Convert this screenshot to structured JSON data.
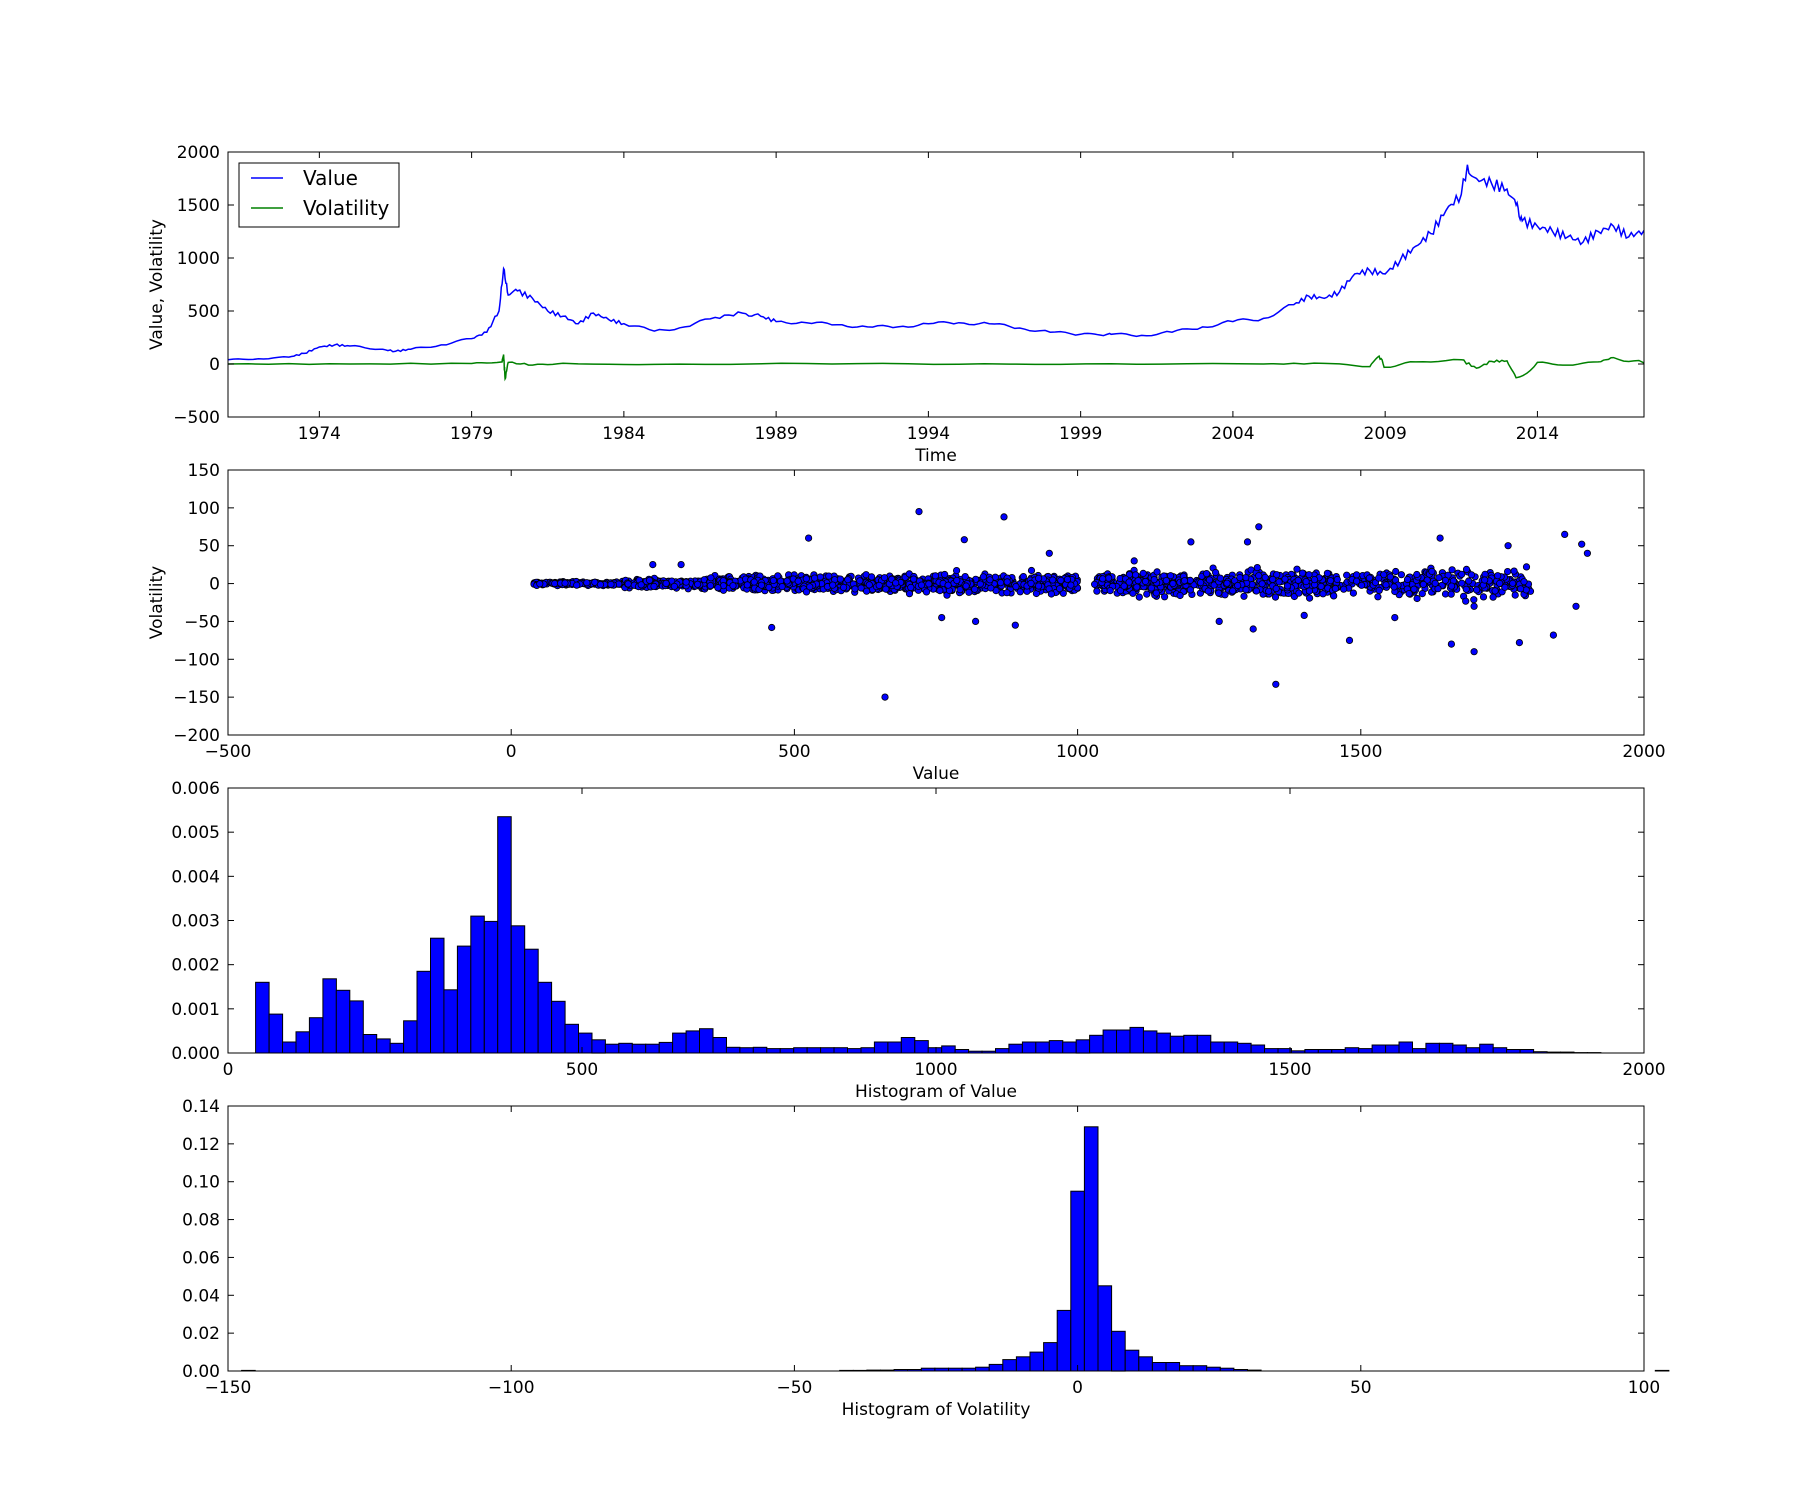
{
  "colors": {
    "value": "#0000ff",
    "volatility": "#008000",
    "bar": "#0000ff",
    "scatter": "#0000ff",
    "edge": "#000000"
  },
  "chart_data": [
    {
      "type": "line",
      "xlabel": "Time",
      "ylabel": "Value, Volatility",
      "xlim": [
        1971.0,
        2017.5
      ],
      "ylim": [
        -500,
        2000
      ],
      "xticks": [
        1974,
        1979,
        1984,
        1989,
        1994,
        1999,
        2004,
        2009,
        2014
      ],
      "yticks": [
        2000,
        1500,
        1000,
        500,
        0,
        -500
      ],
      "ytick_labels": [
        "2000",
        "1500",
        "1000",
        "500",
        "0",
        "−500"
      ],
      "legend": {
        "position": "top-left",
        "entries": [
          "Value",
          "Volatility"
        ]
      },
      "series": [
        {
          "name": "Value",
          "x": [
            1971.0,
            1972.0,
            1973.0,
            1973.5,
            1974.0,
            1974.5,
            1975.0,
            1976.0,
            1976.5,
            1977.0,
            1978.0,
            1979.0,
            1979.5,
            1979.9,
            1980.05,
            1980.2,
            1980.5,
            1981.0,
            1981.5,
            1982.0,
            1982.5,
            1983.0,
            1983.5,
            1984.0,
            1985.0,
            1986.0,
            1987.0,
            1987.9,
            1988.5,
            1989.0,
            1990.0,
            1991.0,
            1992.0,
            1993.0,
            1994.0,
            1995.0,
            1996.0,
            1997.0,
            1998.0,
            1999.0,
            1999.7,
            2000.0,
            2001.0,
            2002.0,
            2003.0,
            2004.0,
            2005.0,
            2006.0,
            2006.5,
            2007.0,
            2007.5,
            2008.0,
            2008.5,
            2009.0,
            2009.5,
            2010.0,
            2010.5,
            2011.0,
            2011.5,
            2011.7,
            2012.0,
            2012.5,
            2013.0,
            2013.3,
            2013.5,
            2014.0,
            2014.5,
            2015.0,
            2015.5,
            2016.0,
            2016.5,
            2017.0,
            2017.5
          ],
          "y": [
            40,
            50,
            65,
            100,
            160,
            180,
            170,
            140,
            120,
            140,
            180,
            240,
            300,
            500,
            900,
            650,
            690,
            620,
            500,
            450,
            380,
            480,
            420,
            380,
            310,
            350,
            440,
            480,
            450,
            400,
            390,
            370,
            350,
            350,
            380,
            390,
            380,
            340,
            300,
            280,
            270,
            280,
            270,
            300,
            350,
            400,
            430,
            560,
            640,
            620,
            680,
            850,
            880,
            850,
            980,
            1110,
            1230,
            1450,
            1600,
            1880,
            1750,
            1700,
            1650,
            1500,
            1350,
            1300,
            1250,
            1200,
            1150,
            1250,
            1300,
            1200,
            1260
          ]
        },
        {
          "name": "Volatility",
          "x": [
            1971.0,
            1975.0,
            1979.0,
            1980.0,
            1980.05,
            1980.1,
            1980.2,
            1981.0,
            1982.0,
            1985.0,
            1990.0,
            1995.0,
            2000.0,
            2005.0,
            2007.0,
            2008.5,
            2008.8,
            2009.0,
            2010.0,
            2011.5,
            2012.0,
            2012.5,
            2013.0,
            2013.3,
            2014.0,
            2015.0,
            2016.0,
            2016.5,
            2017.5
          ],
          "y": [
            0,
            0,
            5,
            20,
            90,
            -140,
            15,
            -10,
            8,
            -4,
            5,
            -3,
            2,
            0,
            6,
            -25,
            75,
            -30,
            20,
            40,
            -40,
            25,
            30,
            -130,
            15,
            -10,
            20,
            60,
            10
          ]
        }
      ]
    },
    {
      "type": "scatter",
      "xlabel": "Value",
      "ylabel": "Volatility",
      "xlim": [
        -500,
        2000
      ],
      "ylim": [
        -200,
        150
      ],
      "xticks": [
        -500,
        0,
        500,
        1000,
        1500,
        2000
      ],
      "xtick_labels": [
        "−500",
        "0",
        "500",
        "1000",
        "1500",
        "2000"
      ],
      "yticks": [
        150,
        100,
        50,
        0,
        -50,
        -100,
        -150,
        -200
      ],
      "ytick_labels": [
        "150",
        "100",
        "50",
        "0",
        "−50",
        "−100",
        "−150",
        "−200"
      ],
      "clusters": [
        {
          "x": [
            40,
            200
          ],
          "spread": 4,
          "count": 160
        },
        {
          "x": [
            200,
            350
          ],
          "spread": 8,
          "count": 200
        },
        {
          "x": [
            350,
            700
          ],
          "spread": 12,
          "count": 500
        },
        {
          "x": [
            700,
            1000
          ],
          "spread": 13,
          "count": 350
        },
        {
          "x": [
            1030,
            1450
          ],
          "spread": 13,
          "count": 500
        },
        {
          "x": [
            1450,
            1800
          ],
          "spread": 14,
          "count": 260
        }
      ],
      "outliers": [
        [
          660,
          -150
        ],
        [
          1350,
          -133
        ],
        [
          720,
          95
        ],
        [
          870,
          88
        ],
        [
          1320,
          75
        ],
        [
          1860,
          65
        ],
        [
          525,
          60
        ],
        [
          800,
          58
        ],
        [
          1890,
          52
        ],
        [
          1200,
          55
        ],
        [
          1300,
          55
        ],
        [
          1640,
          60
        ],
        [
          1760,
          50
        ],
        [
          950,
          40
        ],
        [
          460,
          -58
        ],
        [
          1480,
          -75
        ],
        [
          1660,
          -80
        ],
        [
          1700,
          -90
        ],
        [
          1780,
          -78
        ],
        [
          1840,
          -68
        ],
        [
          760,
          -45
        ],
        [
          820,
          -50
        ],
        [
          890,
          -55
        ],
        [
          1250,
          -50
        ],
        [
          1310,
          -60
        ],
        [
          1400,
          -42
        ],
        [
          1560,
          -45
        ],
        [
          1880,
          -30
        ],
        [
          1700,
          -30
        ],
        [
          300,
          25
        ],
        [
          250,
          25
        ],
        [
          1100,
          30
        ],
        [
          1900,
          40
        ]
      ]
    },
    {
      "type": "bar",
      "xlabel": "Histogram of Value",
      "ylabel": "",
      "xlim": [
        0,
        2000
      ],
      "ylim": [
        0,
        0.006
      ],
      "xticks": [
        0,
        500,
        1000,
        1500,
        2000
      ],
      "yticks": [
        0.006,
        0.005,
        0.004,
        0.003,
        0.002,
        0.001,
        0.0
      ],
      "ytick_labels": [
        "0.006",
        "0.005",
        "0.004",
        "0.003",
        "0.002",
        "0.001",
        "0.000"
      ],
      "bin_start": 39,
      "bin_width": 19,
      "values": [
        0.0016,
        0.00088,
        0.00025,
        0.00048,
        0.0008,
        0.00168,
        0.00142,
        0.00118,
        0.00042,
        0.00032,
        0.00022,
        0.00073,
        0.00185,
        0.0026,
        0.00143,
        0.00242,
        0.0031,
        0.00298,
        0.00535,
        0.00288,
        0.00235,
        0.0016,
        0.00117,
        0.00065,
        0.00045,
        0.0003,
        0.0002,
        0.00022,
        0.0002,
        0.0002,
        0.00024,
        0.00045,
        0.0005,
        0.00055,
        0.00035,
        0.00013,
        0.00012,
        0.00013,
        0.0001,
        0.0001,
        0.00012,
        0.00012,
        0.00012,
        0.00012,
        0.0001,
        0.00012,
        0.00025,
        0.00025,
        0.00035,
        0.00028,
        0.00012,
        0.00016,
        8e-05,
        4e-05,
        4e-05,
        0.0001,
        0.0002,
        0.00025,
        0.00025,
        0.00028,
        0.00025,
        0.0003,
        0.0004,
        0.00052,
        0.00052,
        0.00058,
        0.0005,
        0.00045,
        0.00038,
        0.0004,
        0.0004,
        0.00025,
        0.00025,
        0.00022,
        0.00018,
        0.0001,
        0.0001,
        5e-05,
        8e-05,
        8e-05,
        8e-05,
        0.00012,
        0.0001,
        0.00018,
        0.00018,
        0.00025,
        0.0001,
        0.00022,
        0.00022,
        0.00018,
        0.00012,
        0.0002,
        0.00012,
        8e-05,
        8e-05,
        3e-05,
        2e-05,
        2e-05,
        1e-05,
        1e-05
      ]
    },
    {
      "type": "bar",
      "xlabel": "Histogram of Volatility",
      "ylabel": "",
      "xlim": [
        -150,
        100
      ],
      "ylim": [
        0,
        0.14
      ],
      "xticks": [
        -150,
        -100,
        -50,
        0,
        50,
        100
      ],
      "xtick_labels": [
        "−150",
        "−100",
        "−50",
        "0",
        "50",
        "100"
      ],
      "yticks": [
        0.14,
        0.12,
        0.1,
        0.08,
        0.06,
        0.04,
        0.02,
        0.0
      ],
      "ytick_labels": [
        "0.14",
        "0.12",
        "0.10",
        "0.08",
        "0.06",
        "0.04",
        "0.02",
        "0.00"
      ],
      "bin_start": -147.6,
      "bin_width": 2.4,
      "values": [
        0.0003,
        0,
        0,
        0,
        0,
        0,
        0,
        0,
        0,
        0,
        0,
        0,
        0,
        0,
        0,
        0,
        0,
        0,
        0,
        0,
        0,
        0,
        0,
        0,
        0,
        0,
        0,
        0,
        0,
        0,
        0,
        0,
        0,
        0,
        0,
        0,
        0,
        0,
        0,
        0,
        0,
        0,
        0,
        0,
        0.0003,
        0.0003,
        0.0005,
        0.0005,
        0.0008,
        0.0008,
        0.0015,
        0.0015,
        0.0015,
        0.0015,
        0.002,
        0.0035,
        0.006,
        0.0075,
        0.01,
        0.015,
        0.032,
        0.095,
        0.129,
        0.045,
        0.021,
        0.011,
        0.0075,
        0.0045,
        0.0045,
        0.0028,
        0.0028,
        0.002,
        0.0015,
        0.0008,
        0.0005,
        0,
        0,
        0,
        0,
        0,
        0,
        0,
        0,
        0,
        0,
        0,
        0,
        0,
        0,
        0,
        0,
        0,
        0,
        0,
        0,
        0,
        0,
        0,
        0,
        0,
        0,
        0,
        0,
        0,
        0.0003
      ]
    }
  ]
}
